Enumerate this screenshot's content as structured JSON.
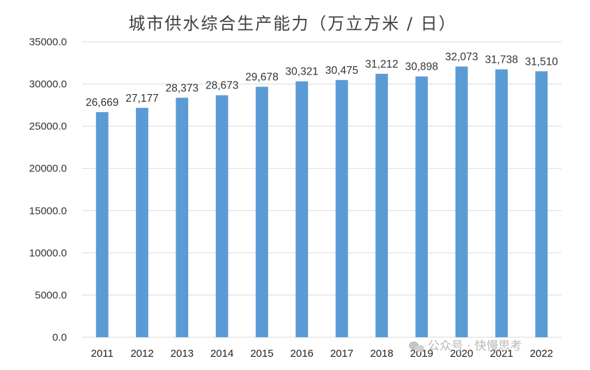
{
  "chart_data": {
    "type": "bar",
    "title": "城市供水综合生产能力（万立方米 / 日）",
    "categories": [
      "2011",
      "2012",
      "2013",
      "2014",
      "2015",
      "2016",
      "2017",
      "2018",
      "2019",
      "2020",
      "2021",
      "2022"
    ],
    "values": [
      26669,
      27177,
      28373,
      28673,
      29678,
      30321,
      30475,
      31212,
      30898,
      32073,
      31738,
      31510
    ],
    "data_labels": [
      "26,669",
      "27,177",
      "28,373",
      "28,673",
      "29,678",
      "30,321",
      "30,475",
      "31,212",
      "30,898",
      "32,073",
      "31,738",
      "31,510"
    ],
    "y_ticks": [
      "0.0",
      "5000.0",
      "10000.0",
      "15000.0",
      "20000.0",
      "25000.0",
      "30000.0",
      "35000.0"
    ],
    "ylim": [
      0,
      35000
    ],
    "ystep": 5000,
    "grid": true,
    "legend": "none",
    "bar_color": "#5B9BD5",
    "grid_color": "#d9d9d9"
  },
  "watermark": {
    "icon": "wechat-icon",
    "text": "公众号 · 快慢思考"
  }
}
